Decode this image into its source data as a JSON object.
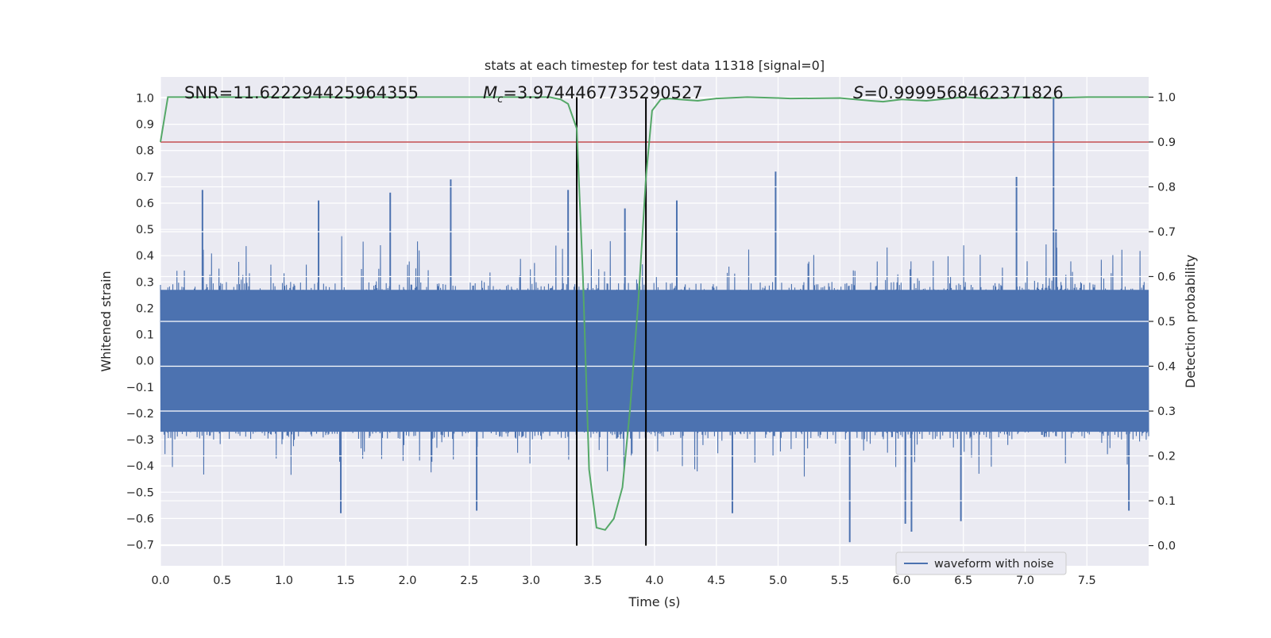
{
  "chart_data": {
    "type": "line",
    "title": "stats at each timestep for test data 11318 [signal=0]",
    "xlabel": "Time (s)",
    "ylabel": "Whitened strain",
    "y2label": "Detection probability",
    "xlim": [
      0.0,
      8.0
    ],
    "ylim": [
      -0.78,
      1.08
    ],
    "y2lim": [
      -0.045,
      1.045
    ],
    "xticks": [
      0.0,
      0.5,
      1.0,
      1.5,
      2.0,
      2.5,
      3.0,
      3.5,
      4.0,
      4.5,
      5.0,
      5.5,
      6.0,
      6.5,
      7.0,
      7.5
    ],
    "xtick_labels": [
      "0.0",
      "0.5",
      "1.0",
      "1.5",
      "2.0",
      "2.5",
      "3.0",
      "3.5",
      "4.0",
      "4.5",
      "5.0",
      "5.5",
      "6.0",
      "6.5",
      "7.0",
      "7.5"
    ],
    "yticks": [
      -0.7,
      -0.6,
      -0.5,
      -0.4,
      -0.3,
      -0.2,
      -0.1,
      0.0,
      0.1,
      0.2,
      0.3,
      0.4,
      0.5,
      0.6,
      0.7,
      0.8,
      0.9,
      1.0
    ],
    "ytick_labels": [
      "−0.7",
      "−0.6",
      "−0.5",
      "−0.4",
      "−0.3",
      "−0.2",
      "−0.1",
      "0.0",
      "0.1",
      "0.2",
      "0.3",
      "0.4",
      "0.5",
      "0.6",
      "0.7",
      "0.8",
      "0.9",
      "1.0"
    ],
    "y2ticks": [
      0.0,
      0.1,
      0.2,
      0.3,
      0.4,
      0.5,
      0.6,
      0.7,
      0.8,
      0.9,
      1.0
    ],
    "y2tick_labels": [
      "0.0",
      "0.1",
      "0.2",
      "0.3",
      "0.4",
      "0.5",
      "0.6",
      "0.7",
      "0.8",
      "0.9",
      "1.0"
    ],
    "grid": true,
    "legend": {
      "placement": "lower-right",
      "entries": [
        "waveform with noise"
      ]
    },
    "annotations": {
      "snr": "SNR=11.622294425964355",
      "mc_symbol": "M",
      "mc_sub": "c",
      "mc_value": "=3.9744467735290527",
      "s_symbol": "S",
      "s_value": "=0.9999568462371826"
    },
    "vertical_lines_x": [
      3.37,
      3.93
    ],
    "threshold_probability": 0.9,
    "series": [
      {
        "name": "waveform with noise",
        "axis": "left",
        "kind": "dense-noise",
        "typical_abs_amplitude": 0.3,
        "peaks": [
          {
            "x": 0.34,
            "y": 0.65
          },
          {
            "x": 1.28,
            "y": 0.61
          },
          {
            "x": 1.86,
            "y": 0.64
          },
          {
            "x": 2.35,
            "y": 0.69
          },
          {
            "x": 3.3,
            "y": 0.65
          },
          {
            "x": 3.76,
            "y": 0.58
          },
          {
            "x": 4.18,
            "y": 0.61
          },
          {
            "x": 4.98,
            "y": 0.72
          },
          {
            "x": 6.93,
            "y": 0.7
          },
          {
            "x": 7.23,
            "y": 1.0
          },
          {
            "x": 7.25,
            "y": 0.5
          },
          {
            "x": 1.46,
            "y": -0.58
          },
          {
            "x": 2.56,
            "y": -0.57
          },
          {
            "x": 4.63,
            "y": -0.58
          },
          {
            "x": 5.58,
            "y": -0.69
          },
          {
            "x": 6.03,
            "y": -0.62
          },
          {
            "x": 6.08,
            "y": -0.65
          },
          {
            "x": 6.48,
            "y": -0.61
          },
          {
            "x": 7.84,
            "y": -0.57
          }
        ]
      },
      {
        "name": "Detection probability",
        "axis": "right",
        "x": [
          0.0,
          0.06,
          0.1,
          0.5,
          1.0,
          1.5,
          2.0,
          2.5,
          3.0,
          3.15,
          3.24,
          3.3,
          3.37,
          3.42,
          3.47,
          3.53,
          3.6,
          3.67,
          3.74,
          3.8,
          3.87,
          3.93,
          3.98,
          4.05,
          4.12,
          4.2,
          4.35,
          4.5,
          4.75,
          5.0,
          5.1,
          5.5,
          5.75,
          5.85,
          6.0,
          6.2,
          6.5,
          6.7,
          7.0,
          7.2,
          7.5,
          8.0
        ],
        "y": [
          0.9,
          1.0,
          1.0,
          1.0,
          1.0,
          1.0,
          1.0,
          1.0,
          1.0,
          1.0,
          0.995,
          0.985,
          0.93,
          0.6,
          0.17,
          0.04,
          0.035,
          0.06,
          0.13,
          0.3,
          0.55,
          0.82,
          0.97,
          0.995,
          0.997,
          0.995,
          0.992,
          0.997,
          1.0,
          0.998,
          0.997,
          0.998,
          0.992,
          0.99,
          0.995,
          0.992,
          1.0,
          0.997,
          1.0,
          0.998,
          1.0,
          1.0
        ]
      }
    ]
  },
  "colors": {
    "plot_background": "#eaeaf2",
    "grid": "#ffffff",
    "waveform": "#4c72b0",
    "probability": "#55a868",
    "threshold": "#c44e52",
    "vertical_lines": "#000000"
  }
}
